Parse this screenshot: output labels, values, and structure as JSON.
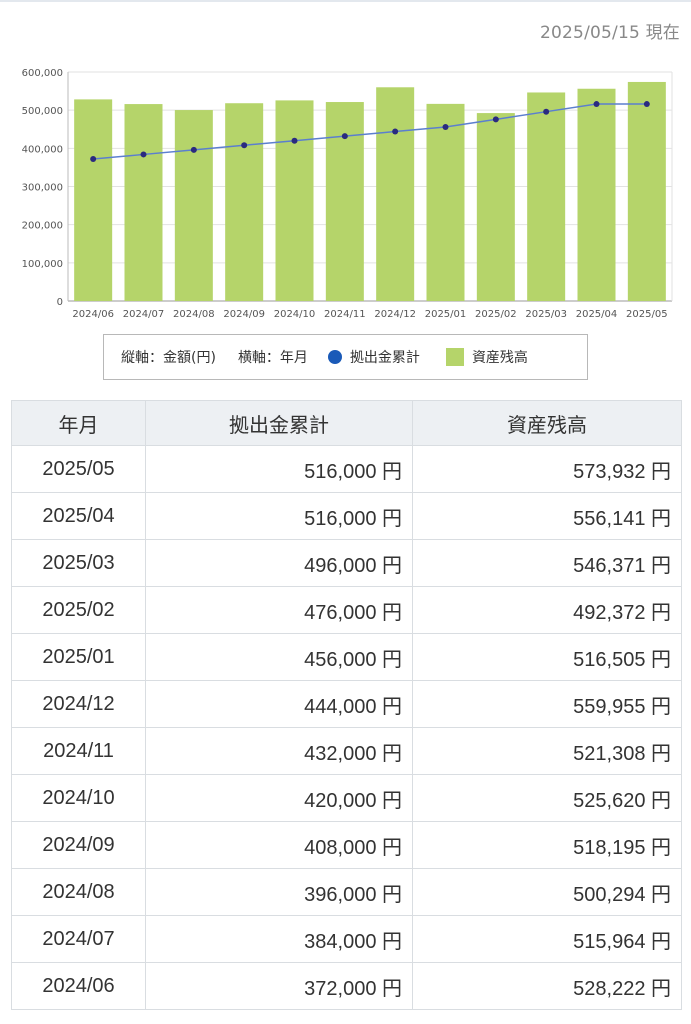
{
  "as_of": "2025/05/15 現在",
  "chart_data": {
    "type": "bar",
    "categories": [
      "2024/06",
      "2024/07",
      "2024/08",
      "2024/09",
      "2024/10",
      "2024/11",
      "2024/12",
      "2025/01",
      "2025/02",
      "2025/03",
      "2025/04",
      "2025/05"
    ],
    "series": [
      {
        "name": "資産残高",
        "type": "bar",
        "color": "#b5d46a",
        "values": [
          528222,
          515964,
          500294,
          518195,
          525620,
          521308,
          559955,
          516505,
          492372,
          546371,
          556141,
          573932
        ]
      },
      {
        "name": "拠出金累計",
        "type": "line",
        "color": "#1a5ab8",
        "values": [
          372000,
          384000,
          396000,
          408000,
          420000,
          432000,
          444000,
          456000,
          476000,
          496000,
          516000,
          516000
        ]
      }
    ],
    "ylim": [
      0,
      600000
    ],
    "yticks": [
      0,
      100000,
      200000,
      300000,
      400000,
      500000,
      600000
    ],
    "ytick_labels": [
      "0",
      "100,000",
      "200,000",
      "300,000",
      "400,000",
      "500,000",
      "600,000"
    ],
    "grid": true
  },
  "legend": {
    "y_axis_text": "縦軸：金額(円)",
    "x_axis_text": "横軸：年月",
    "line_label": "拠出金累計",
    "bar_label": "資産残高"
  },
  "table": {
    "headers": [
      "年月",
      "拠出金累計",
      "資産残高"
    ],
    "rows": [
      {
        "month": "2025/05",
        "contrib": "516,000 円",
        "balance": "573,932 円"
      },
      {
        "month": "2025/04",
        "contrib": "516,000 円",
        "balance": "556,141 円"
      },
      {
        "month": "2025/03",
        "contrib": "496,000 円",
        "balance": "546,371 円"
      },
      {
        "month": "2025/02",
        "contrib": "476,000 円",
        "balance": "492,372 円"
      },
      {
        "month": "2025/01",
        "contrib": "456,000 円",
        "balance": "516,505 円"
      },
      {
        "month": "2024/12",
        "contrib": "444,000 円",
        "balance": "559,955 円"
      },
      {
        "month": "2024/11",
        "contrib": "432,000 円",
        "balance": "521,308 円"
      },
      {
        "month": "2024/10",
        "contrib": "420,000 円",
        "balance": "525,620 円"
      },
      {
        "month": "2024/09",
        "contrib": "408,000 円",
        "balance": "518,195 円"
      },
      {
        "month": "2024/08",
        "contrib": "396,000 円",
        "balance": "500,294 円"
      },
      {
        "month": "2024/07",
        "contrib": "384,000 円",
        "balance": "515,964 円"
      },
      {
        "month": "2024/06",
        "contrib": "372,000 円",
        "balance": "528,222 円"
      }
    ]
  }
}
